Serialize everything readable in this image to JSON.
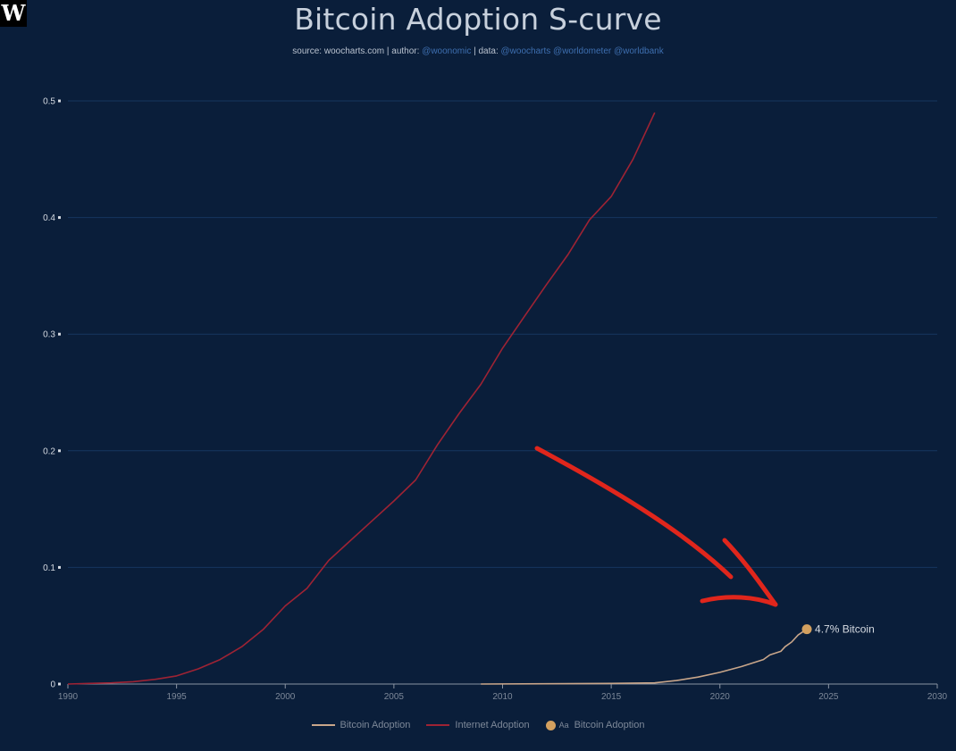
{
  "logo": {
    "letter": "W"
  },
  "header": {
    "title": "Bitcoin Adoption S-curve",
    "subtitle_prefix": "source: woocharts.com | author: ",
    "author": "@woonomic",
    "data_prefix": " | data: ",
    "data_sources": "@woocharts @worldometer @worldbank"
  },
  "colors": {
    "background": "#0a1e3a",
    "grid": "#16365f",
    "bitcoin_line": "#c9a68a",
    "internet_line": "#9e2334",
    "marker": "#d3a05f",
    "arrow": "#e0261c",
    "axis_text": "#7d8898",
    "y_text": "#d6dbe2"
  },
  "legend": {
    "bitcoin_label": "Bitcoin Adoption",
    "internet_label": "Internet Adoption",
    "marker_label": "Bitcoin Adoption",
    "marker_glyph": "Aa"
  },
  "chart_data": {
    "type": "line",
    "title": "Bitcoin Adoption S-curve",
    "xlim": [
      1990,
      2030
    ],
    "ylim": [
      0,
      0.5
    ],
    "x_ticks": [
      "1990",
      "1995",
      "2000",
      "2005",
      "2010",
      "2015",
      "2020",
      "2025",
      "2030"
    ],
    "y_ticks": [
      "0",
      "0.1",
      "0.2",
      "0.3",
      "0.4",
      "0.5"
    ],
    "grid": "horizontal",
    "legend_position": "bottom-center",
    "series": [
      {
        "name": "Internet Adoption",
        "x": [
          1990,
          1991,
          1992,
          1993,
          1994,
          1995,
          1996,
          1997,
          1998,
          1999,
          2000,
          2001,
          2002,
          2003,
          2004,
          2005,
          2006,
          2007,
          2008,
          2009,
          2010,
          2011,
          2012,
          2013,
          2014,
          2015,
          2016,
          2017
        ],
        "values": [
          0.0,
          0.0005,
          0.001,
          0.002,
          0.004,
          0.007,
          0.013,
          0.021,
          0.032,
          0.047,
          0.067,
          0.082,
          0.106,
          0.123,
          0.14,
          0.157,
          0.175,
          0.205,
          0.232,
          0.257,
          0.288,
          0.315,
          0.342,
          0.368,
          0.398,
          0.418,
          0.45,
          0.49
        ]
      },
      {
        "name": "Bitcoin Adoption",
        "x": [
          2009,
          2012,
          2015,
          2017,
          2018,
          2019,
          2020,
          2021,
          2021.5,
          2022,
          2022.3,
          2022.8,
          2023,
          2023.3,
          2023.6,
          2024
        ],
        "values": [
          0.0,
          0.0002,
          0.0005,
          0.001,
          0.003,
          0.006,
          0.01,
          0.015,
          0.018,
          0.021,
          0.025,
          0.028,
          0.032,
          0.036,
          0.042,
          0.047
        ]
      }
    ],
    "annotation": {
      "x": 2024,
      "y": 0.047,
      "label": "4.7% Bitcoin"
    }
  }
}
